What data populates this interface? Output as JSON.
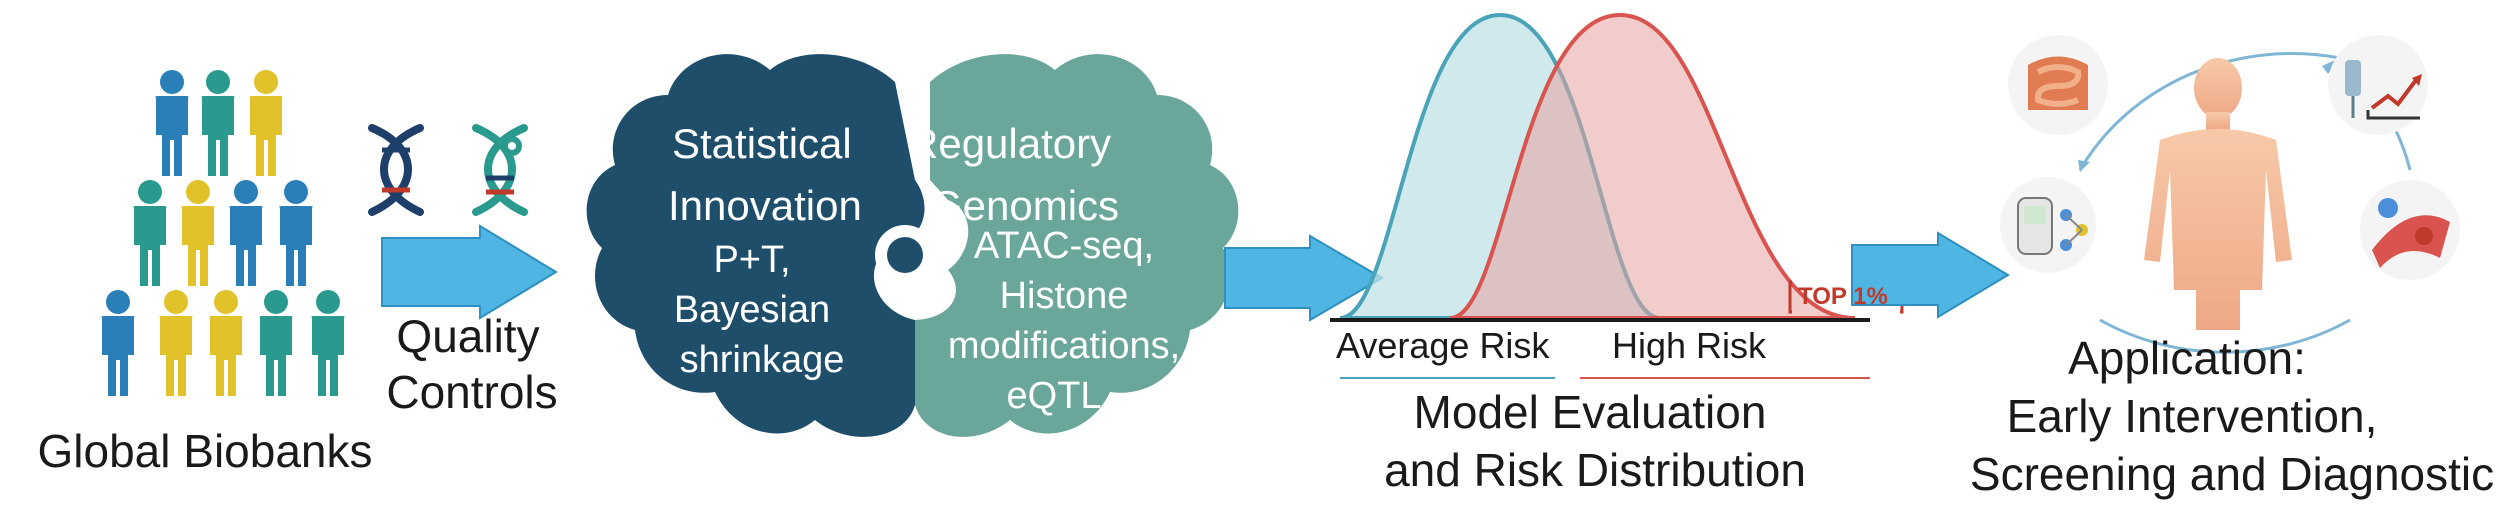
{
  "biobanks": {
    "label": "Global Biobanks"
  },
  "qc": {
    "line1": "Quality",
    "line2": "Controls"
  },
  "brain": {
    "left": {
      "title1": "Statistical",
      "title2": "Innovation",
      "item1": "P+T,",
      "item2": "Bayesian",
      "item3": "shrinkage"
    },
    "right": {
      "title1": "Regulatory",
      "title2": "Genomics",
      "item1": "ATAC-seq,",
      "item2": "Histone",
      "item3": "modifications,",
      "item4": "eQTL"
    }
  },
  "distribution": {
    "top_label": "TOP 1%",
    "average_label": "Average Risk",
    "high_label": "High Risk",
    "caption1": "Model Evaluation",
    "caption2": "and Risk Distribution"
  },
  "application": {
    "line1": "Application:",
    "line2": "Early Intervention,",
    "line3": "Screening and Diagnostic"
  },
  "colors": {
    "brain_left": "#1f4e6b",
    "brain_right": "#6aa69a",
    "arrow": "#4fb6e3",
    "average_curve": "#4aa3b8",
    "high_curve": "#d9534f",
    "person_blue": "#2a7fb8",
    "person_teal": "#2a9a8e",
    "person_yellow": "#e2c22a"
  }
}
